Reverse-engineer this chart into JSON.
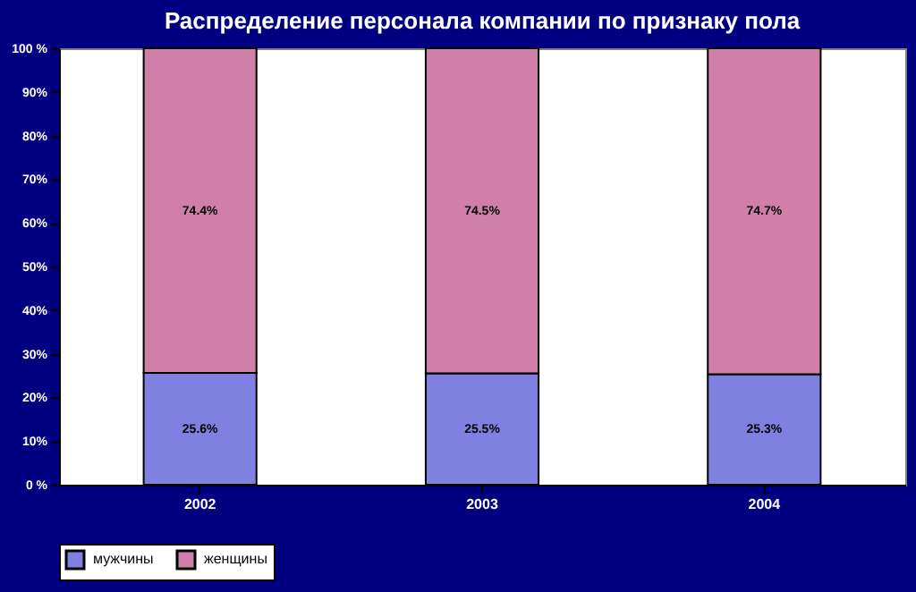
{
  "chart_data": {
    "type": "bar",
    "title": "Распределение персонала компании по признаку пола",
    "categories": [
      "2002",
      "2003",
      "2004"
    ],
    "stacked": true,
    "series": [
      {
        "name": "мужчины",
        "color": "#8080e0",
        "values": [
          25.6,
          25.5,
          25.3
        ],
        "value_labels": [
          "25.6%",
          "25.5%",
          "25.3%"
        ]
      },
      {
        "name": "женщины",
        "color": "#d080a8",
        "values": [
          74.4,
          74.5,
          74.7
        ],
        "value_labels": [
          "74.4%",
          "74.5%",
          "74.7%"
        ]
      }
    ],
    "ylim": [
      0,
      100
    ],
    "yticks": [
      {
        "value": 0,
        "label": "0 %"
      },
      {
        "value": 10,
        "label": "10%"
      },
      {
        "value": 20,
        "label": "20%"
      },
      {
        "value": 30,
        "label": "30%"
      },
      {
        "value": 40,
        "label": "40%"
      },
      {
        "value": 50,
        "label": "50%"
      },
      {
        "value": 60,
        "label": "60%"
      },
      {
        "value": 70,
        "label": "70%"
      },
      {
        "value": 80,
        "label": "80%"
      },
      {
        "value": 90,
        "label": "90%"
      },
      {
        "value": 100,
        "label": "100 %"
      }
    ],
    "grid": false,
    "legend": "bottom"
  }
}
